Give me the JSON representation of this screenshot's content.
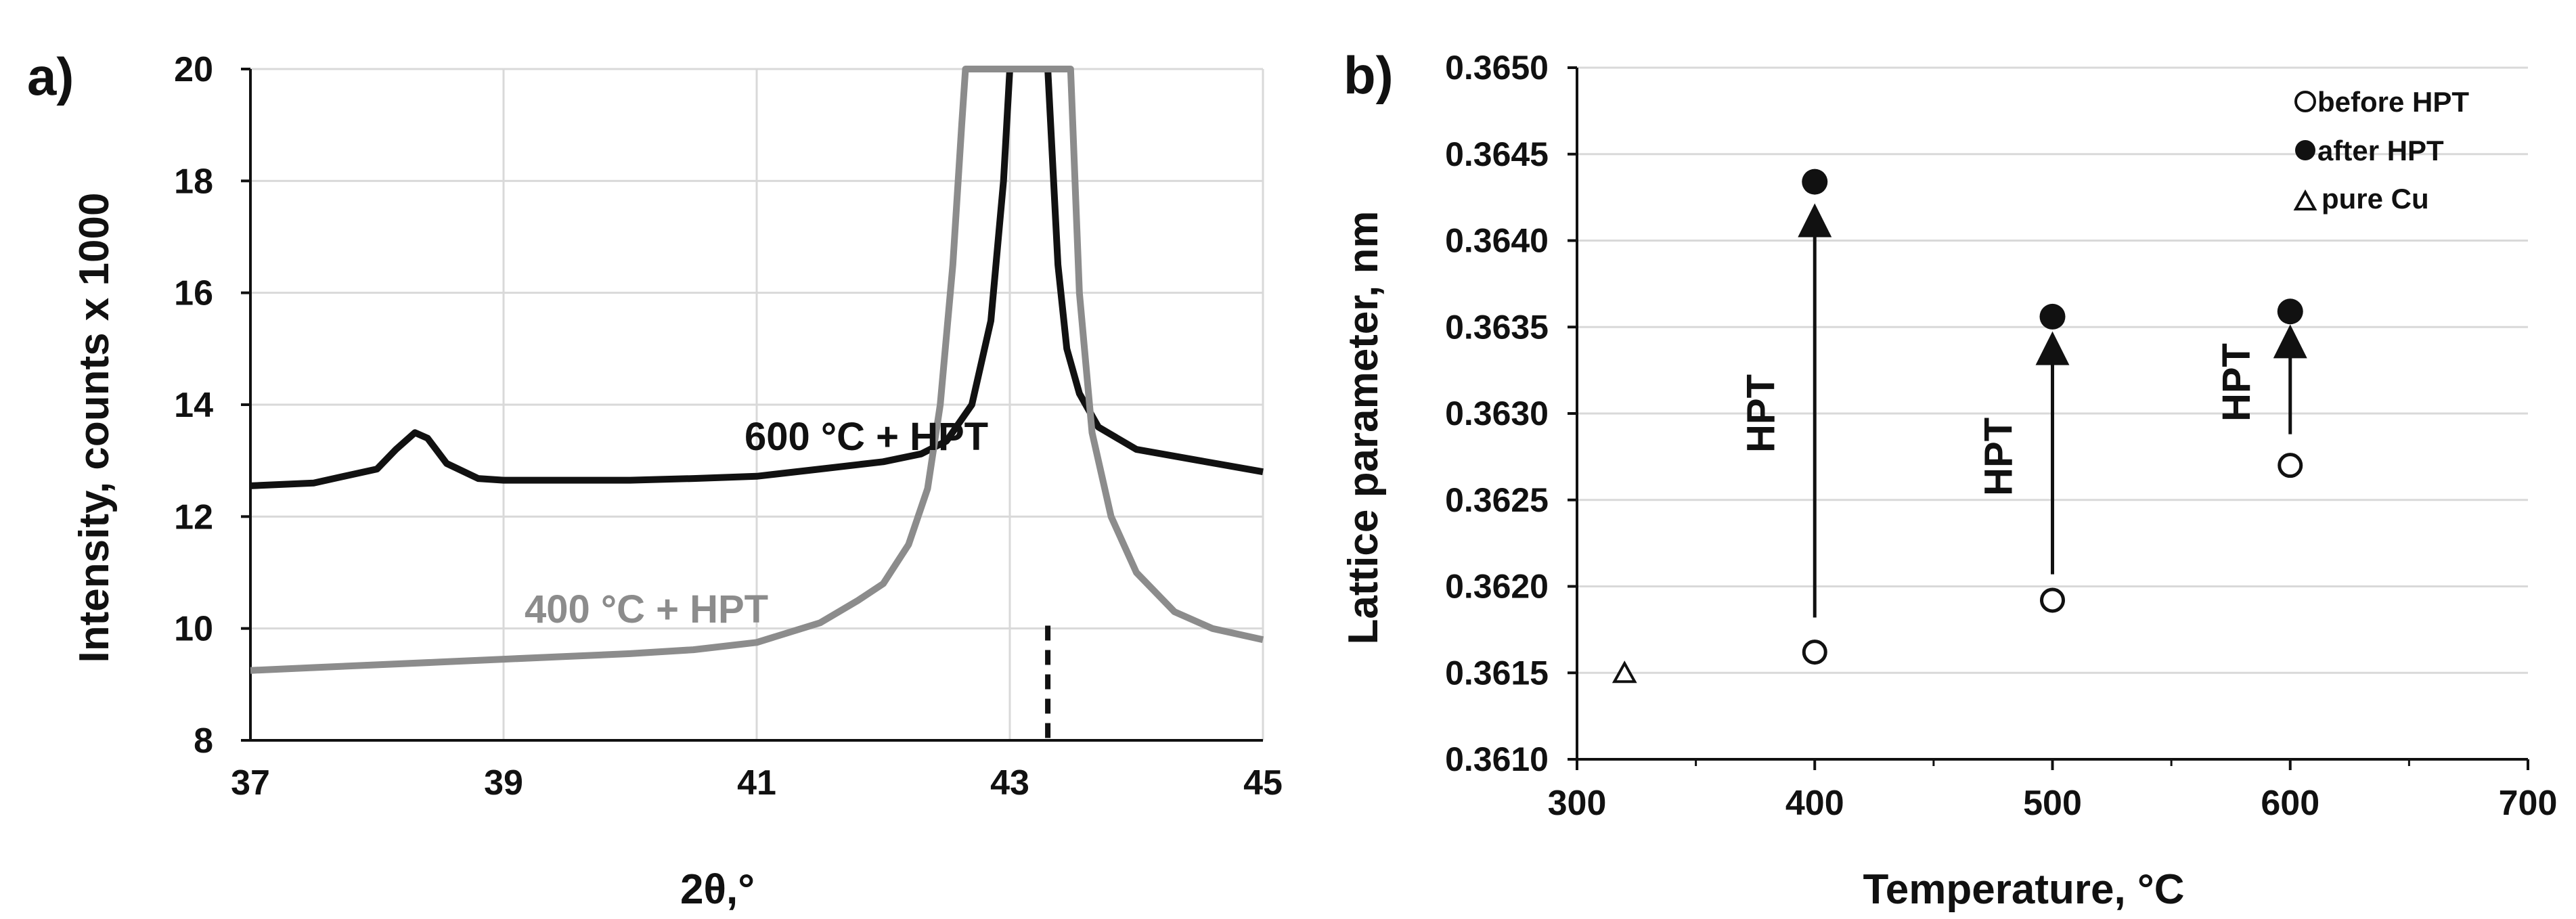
{
  "chart_data": [
    {
      "panel_label": "a)",
      "type": "line",
      "xlabel": "2θ,°",
      "ylabel": "Intensity, counts x 1000",
      "xlim": [
        37,
        45
      ],
      "ylim": [
        8,
        20
      ],
      "x_ticks": [
        "37",
        "39",
        "41",
        "43",
        "45"
      ],
      "y_ticks": [
        "8",
        "10",
        "12",
        "14",
        "16",
        "18",
        "20"
      ],
      "grid": true,
      "reference_line_x": 43.3,
      "series": [
        {
          "name": "600 °C + HPT",
          "color": "#111111",
          "x": [
            37.0,
            37.5,
            38.0,
            38.15,
            38.3,
            38.4,
            38.55,
            38.8,
            39.0,
            39.5,
            40.0,
            40.5,
            41.0,
            41.5,
            42.0,
            42.3,
            42.5,
            42.7,
            42.85,
            42.95,
            43.0,
            43.02,
            43.3,
            43.38,
            43.45,
            43.55,
            43.7,
            44.0,
            44.5,
            45.0
          ],
          "y": [
            12.55,
            12.6,
            12.85,
            13.2,
            13.5,
            13.4,
            12.95,
            12.68,
            12.65,
            12.65,
            12.65,
            12.68,
            12.72,
            12.85,
            12.98,
            13.12,
            13.35,
            14.0,
            15.5,
            18.0,
            20.0,
            20.0,
            20.0,
            16.5,
            15.0,
            14.2,
            13.6,
            13.2,
            13.0,
            12.8
          ]
        },
        {
          "name": "400 °C + HPT",
          "color": "#8c8c8c",
          "x": [
            37.0,
            37.5,
            38.0,
            38.5,
            39.0,
            39.5,
            40.0,
            40.5,
            41.0,
            41.5,
            41.8,
            42.0,
            42.2,
            42.35,
            42.45,
            42.55,
            42.62,
            42.65,
            43.48,
            43.55,
            43.65,
            43.8,
            44.0,
            44.3,
            44.6,
            45.0
          ],
          "y": [
            9.25,
            9.3,
            9.35,
            9.4,
            9.45,
            9.5,
            9.55,
            9.62,
            9.75,
            10.1,
            10.5,
            10.8,
            11.5,
            12.5,
            14.0,
            16.5,
            19.0,
            20.0,
            20.0,
            16.0,
            13.5,
            12.0,
            11.0,
            10.3,
            10.0,
            9.8
          ]
        }
      ]
    },
    {
      "panel_label": "b)",
      "type": "scatter",
      "xlabel": "Temperature, °C",
      "ylabel": "Lattice parameter, nm",
      "xlim": [
        300,
        700
      ],
      "ylim": [
        0.361,
        0.365
      ],
      "x_ticks": [
        "300",
        "400",
        "500",
        "600",
        "700"
      ],
      "y_ticks": [
        "0.3610",
        "0.3615",
        "0.3620",
        "0.3625",
        "0.3630",
        "0.3635",
        "0.3640",
        "0.3645",
        "0.3650"
      ],
      "grid": true,
      "legend_position": "top-right",
      "series": [
        {
          "name": "before HPT",
          "marker": "open-circle",
          "x": [
            400,
            500,
            600
          ],
          "y": [
            0.36162,
            0.36192,
            0.3627
          ]
        },
        {
          "name": "after HPT",
          "marker": "filled-circle",
          "x": [
            400,
            500,
            600
          ],
          "y": [
            0.36434,
            0.36356,
            0.36359
          ]
        },
        {
          "name": "pure Cu",
          "marker": "open-triangle",
          "x": [
            320
          ],
          "y": [
            0.3615
          ]
        }
      ],
      "arrows": [
        {
          "x": 400,
          "from": 0.36182,
          "to": 0.36418,
          "label": "HPT",
          "label_y": 0.363
        },
        {
          "x": 500,
          "from": 0.36207,
          "to": 0.36344,
          "label": "HPT",
          "label_y": 0.36275
        },
        {
          "x": 600,
          "from": 0.36288,
          "to": 0.36348,
          "label": "HPT",
          "label_y": 0.36318
        }
      ]
    }
  ]
}
